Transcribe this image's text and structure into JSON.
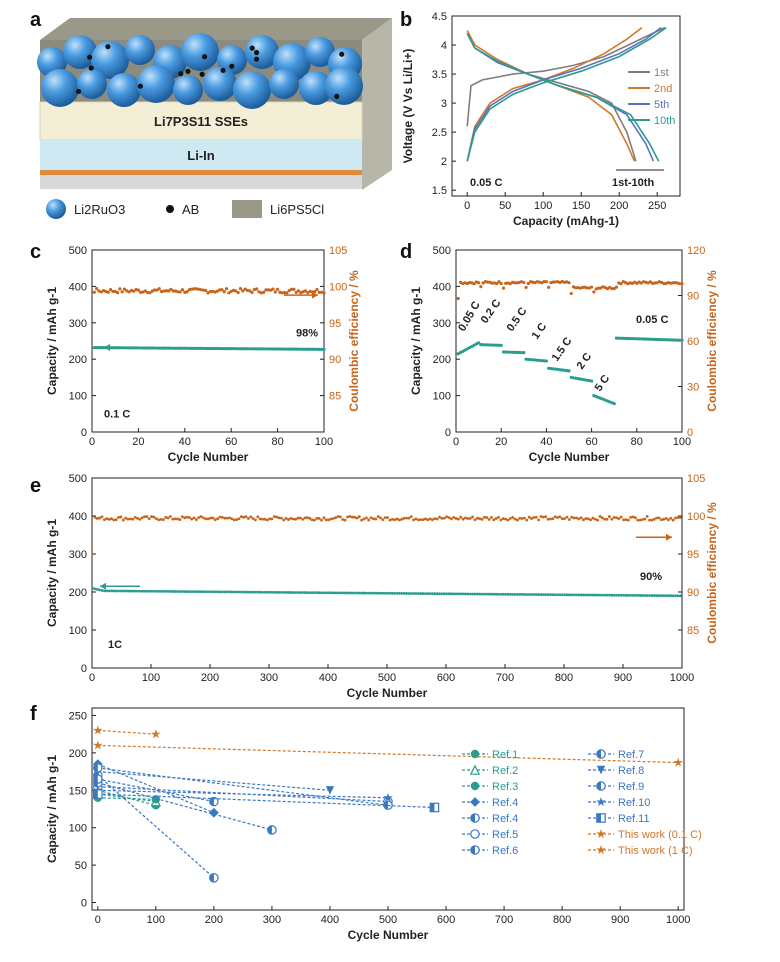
{
  "figure": {
    "panel_letters": [
      "a",
      "b",
      "c",
      "d",
      "e",
      "f"
    ],
    "schematic": {
      "electrolyte_label": "Li7P3S11 SSEs",
      "anode_label": "Li-In",
      "legend": [
        {
          "name": "Li2RuO3",
          "icon": "blue-sphere-icon"
        },
        {
          "name": "AB",
          "icon": "black-dot-icon"
        },
        {
          "name": "Li6PS5Cl",
          "icon": "gray-square-icon"
        }
      ],
      "colors": {
        "sphere": "#3b8fd6",
        "electrolyte": "#f3eed6",
        "anode": "#cfe9f2",
        "collector": "#e08a3c"
      }
    },
    "colors": {
      "capacity": "#2a9d8f",
      "efficiency": "#c8651b",
      "ref_blue": "#3a78c2",
      "this_work": "#d2782a"
    }
  },
  "chart_data": [
    {
      "id": "b",
      "type": "line",
      "title": "",
      "xlabel": "Capacity (mAhg-1)",
      "ylabel": "Voltage (V Vs Li/Li+)",
      "xlim": [
        -20,
        280
      ],
      "ylim": [
        1.4,
        4.5
      ],
      "xticks": [
        0,
        50,
        100,
        150,
        200,
        250
      ],
      "yticks": [
        1.5,
        2.0,
        2.5,
        3.0,
        3.5,
        4.0,
        4.5
      ],
      "annotation_rate": "0.05 C",
      "annotation_cycles": "1st-10th",
      "legend": [
        "1st",
        "2nd",
        "5th",
        "10th"
      ],
      "series": [
        {
          "name": "1st",
          "color": "#7f7f7f",
          "charge": [
            [
              0,
              2.6
            ],
            [
              5,
              3.3
            ],
            [
              20,
              3.4
            ],
            [
              60,
              3.5
            ],
            [
              100,
              3.55
            ],
            [
              140,
              3.65
            ],
            [
              180,
              3.8
            ],
            [
              220,
              4.05
            ],
            [
              260,
              4.3
            ]
          ],
          "discharge": [
            [
              0,
              4.2
            ],
            [
              10,
              3.95
            ],
            [
              40,
              3.7
            ],
            [
              80,
              3.5
            ],
            [
              120,
              3.35
            ],
            [
              160,
              3.2
            ],
            [
              190,
              3.0
            ],
            [
              210,
              2.5
            ],
            [
              222,
              2.0
            ]
          ]
        },
        {
          "name": "2nd",
          "color": "#d2782a",
          "charge": [
            [
              0,
              2.0
            ],
            [
              10,
              2.6
            ],
            [
              30,
              3.0
            ],
            [
              60,
              3.25
            ],
            [
              100,
              3.4
            ],
            [
              140,
              3.6
            ],
            [
              180,
              3.85
            ],
            [
              210,
              4.1
            ],
            [
              230,
              4.3
            ]
          ],
          "discharge": [
            [
              0,
              4.25
            ],
            [
              10,
              4.0
            ],
            [
              40,
              3.75
            ],
            [
              80,
              3.5
            ],
            [
              120,
              3.3
            ],
            [
              160,
              3.1
            ],
            [
              190,
              2.8
            ],
            [
              210,
              2.3
            ],
            [
              220,
              2.0
            ]
          ]
        },
        {
          "name": "5th",
          "color": "#5b72c2",
          "charge": [
            [
              0,
              2.0
            ],
            [
              10,
              2.55
            ],
            [
              30,
              2.95
            ],
            [
              60,
              3.2
            ],
            [
              100,
              3.4
            ],
            [
              150,
              3.6
            ],
            [
              200,
              3.85
            ],
            [
              235,
              4.1
            ],
            [
              255,
              4.3
            ]
          ],
          "discharge": [
            [
              0,
              4.2
            ],
            [
              10,
              3.95
            ],
            [
              40,
              3.7
            ],
            [
              80,
              3.5
            ],
            [
              120,
              3.3
            ],
            [
              170,
              3.1
            ],
            [
              210,
              2.8
            ],
            [
              235,
              2.3
            ],
            [
              245,
              2.0
            ]
          ]
        },
        {
          "name": "10th",
          "color": "#2a9d8f",
          "charge": [
            [
              0,
              2.0
            ],
            [
              10,
              2.5
            ],
            [
              30,
              2.9
            ],
            [
              60,
              3.15
            ],
            [
              100,
              3.35
            ],
            [
              150,
              3.55
            ],
            [
              200,
              3.8
            ],
            [
              240,
              4.1
            ],
            [
              262,
              4.3
            ]
          ],
          "discharge": [
            [
              0,
              4.2
            ],
            [
              10,
              3.95
            ],
            [
              40,
              3.72
            ],
            [
              80,
              3.5
            ],
            [
              120,
              3.3
            ],
            [
              170,
              3.1
            ],
            [
              215,
              2.8
            ],
            [
              240,
              2.3
            ],
            [
              252,
              2.0
            ]
          ]
        }
      ]
    },
    {
      "id": "c",
      "type": "scatter",
      "xlabel": "Cycle Number",
      "ylabel": "Capacity / mAh g-1",
      "ylabel_right": "Coulombic efficiency / %",
      "xlim": [
        0,
        100
      ],
      "ylim": [
        0,
        500
      ],
      "ylim_right": [
        80,
        105
      ],
      "xticks": [
        0,
        20,
        40,
        60,
        80,
        100
      ],
      "yticks": [
        0,
        100,
        200,
        300,
        400,
        500
      ],
      "yticks_right": [
        85,
        90,
        95,
        100,
        105
      ],
      "rate_label": "0.1 C",
      "retention_label": "98%",
      "capacity": {
        "start": 232,
        "end": 227
      },
      "efficiency": {
        "mean": 99.4,
        "spread": 0.3
      }
    },
    {
      "id": "d",
      "type": "scatter",
      "xlabel": "Cycle Number",
      "ylabel": "Capacity / mAh g-1",
      "ylabel_right": "Coulombic efficiency / %",
      "xlim": [
        0,
        100
      ],
      "ylim": [
        0,
        500
      ],
      "ylim_right": [
        0,
        120
      ],
      "xticks": [
        0,
        20,
        40,
        60,
        80,
        100
      ],
      "yticks": [
        0,
        100,
        200,
        300,
        400,
        500
      ],
      "yticks_right": [
        0,
        30,
        60,
        90,
        120
      ],
      "segments": [
        {
          "label": "0.05 C",
          "from": 1,
          "to": 10,
          "cap_start": 215,
          "cap_end": 245
        },
        {
          "label": "0.2 C",
          "from": 11,
          "to": 20,
          "cap_start": 240,
          "cap_end": 238
        },
        {
          "label": "0.5 C",
          "from": 21,
          "to": 30,
          "cap_start": 220,
          "cap_end": 218
        },
        {
          "label": "1 C",
          "from": 31,
          "to": 40,
          "cap_start": 200,
          "cap_end": 195
        },
        {
          "label": "1.5 C",
          "from": 41,
          "to": 50,
          "cap_start": 175,
          "cap_end": 168
        },
        {
          "label": "2 C",
          "from": 51,
          "to": 60,
          "cap_start": 150,
          "cap_end": 140
        },
        {
          "label": "5 C",
          "from": 61,
          "to": 70,
          "cap_start": 100,
          "cap_end": 78
        },
        {
          "label": "0.05 C",
          "from": 71,
          "to": 100,
          "cap_start": 258,
          "cap_end": 252
        }
      ],
      "efficiency": {
        "first": 88,
        "mean": 98.5,
        "dip_mean": 95
      }
    },
    {
      "id": "e",
      "type": "scatter",
      "xlabel": "Cycle Number",
      "ylabel": "Capacity / mAh g-1",
      "ylabel_right": "Coulombic efficiency / %",
      "xlim": [
        0,
        1000
      ],
      "ylim": [
        0,
        500
      ],
      "ylim_right": [
        80,
        105
      ],
      "xticks": [
        0,
        100,
        200,
        300,
        400,
        500,
        600,
        700,
        800,
        900,
        1000
      ],
      "yticks": [
        0,
        100,
        200,
        300,
        400,
        500
      ],
      "yticks_right": [
        85,
        90,
        95,
        100,
        105
      ],
      "rate_label": "1C",
      "retention_label": "90%",
      "capacity": {
        "first": 210,
        "plateau": 203,
        "end": 190
      },
      "efficiency": {
        "first": 95,
        "mean": 99.7
      }
    },
    {
      "id": "f",
      "type": "line",
      "xlabel": "Cycle Number",
      "ylabel": "Capacity / mAh g-1",
      "xlim": [
        -10,
        1010
      ],
      "ylim": [
        -10,
        260
      ],
      "xticks": [
        0,
        100,
        200,
        300,
        400,
        500,
        600,
        700,
        800,
        900,
        1000
      ],
      "yticks": [
        0,
        50,
        100,
        150,
        200,
        250
      ],
      "series": [
        {
          "name": "Ref.1",
          "marker": "circle-fill",
          "color": "#2a9d8f",
          "points": [
            [
              0,
              150
            ],
            [
              100,
              130
            ]
          ]
        },
        {
          "name": "Ref.2",
          "marker": "triangle",
          "color": "#2a9d8f",
          "points": [
            [
              0,
              145
            ],
            [
              100,
              135
            ]
          ]
        },
        {
          "name": "Ref.3",
          "marker": "circle-fill",
          "color": "#2a9d8f",
          "points": [
            [
              0,
              140
            ],
            [
              100,
              138
            ]
          ]
        },
        {
          "name": "Ref.4",
          "marker": "diamond",
          "color": "#3a78c2",
          "points": [
            [
              0,
              185
            ],
            [
              200,
              120
            ]
          ]
        },
        {
          "name": "Ref.4",
          "marker": "circle-half",
          "color": "#3a78c2",
          "points": [
            [
              0,
              170
            ],
            [
              200,
              33
            ]
          ]
        },
        {
          "name": "Ref.5",
          "marker": "circle-open",
          "color": "#3a78c2",
          "points": [
            [
              0,
              155
            ],
            [
              500,
              135
            ]
          ]
        },
        {
          "name": "Ref.6",
          "marker": "circle-half",
          "color": "#3a78c2",
          "points": [
            [
              0,
              160
            ],
            [
              300,
              97
            ]
          ]
        },
        {
          "name": "Ref.7",
          "marker": "circle-half",
          "color": "#3a78c2",
          "points": [
            [
              0,
              165
            ],
            [
              200,
              135
            ]
          ]
        },
        {
          "name": "Ref.8",
          "marker": "triangle-down",
          "color": "#3a78c2",
          "points": [
            [
              0,
              175
            ],
            [
              400,
              150
            ]
          ]
        },
        {
          "name": "Ref.9",
          "marker": "circle-half",
          "color": "#3a78c2",
          "points": [
            [
              0,
              180
            ],
            [
              500,
              130
            ]
          ]
        },
        {
          "name": "Ref.10",
          "marker": "star",
          "color": "#3a78c2",
          "points": [
            [
              0,
              150
            ],
            [
              500,
              140
            ]
          ]
        },
        {
          "name": "Ref.11",
          "marker": "square-half",
          "color": "#3a78c2",
          "points": [
            [
              0,
              145
            ],
            [
              580,
              127
            ]
          ]
        },
        {
          "name": "This work (0.1 C)",
          "marker": "star",
          "color": "#d2782a",
          "points": [
            [
              0,
              230
            ],
            [
              100,
              225
            ]
          ]
        },
        {
          "name": "This work (1 C)",
          "marker": "star",
          "color": "#d2782a",
          "points": [
            [
              0,
              210
            ],
            [
              1000,
              187
            ]
          ]
        }
      ]
    }
  ]
}
